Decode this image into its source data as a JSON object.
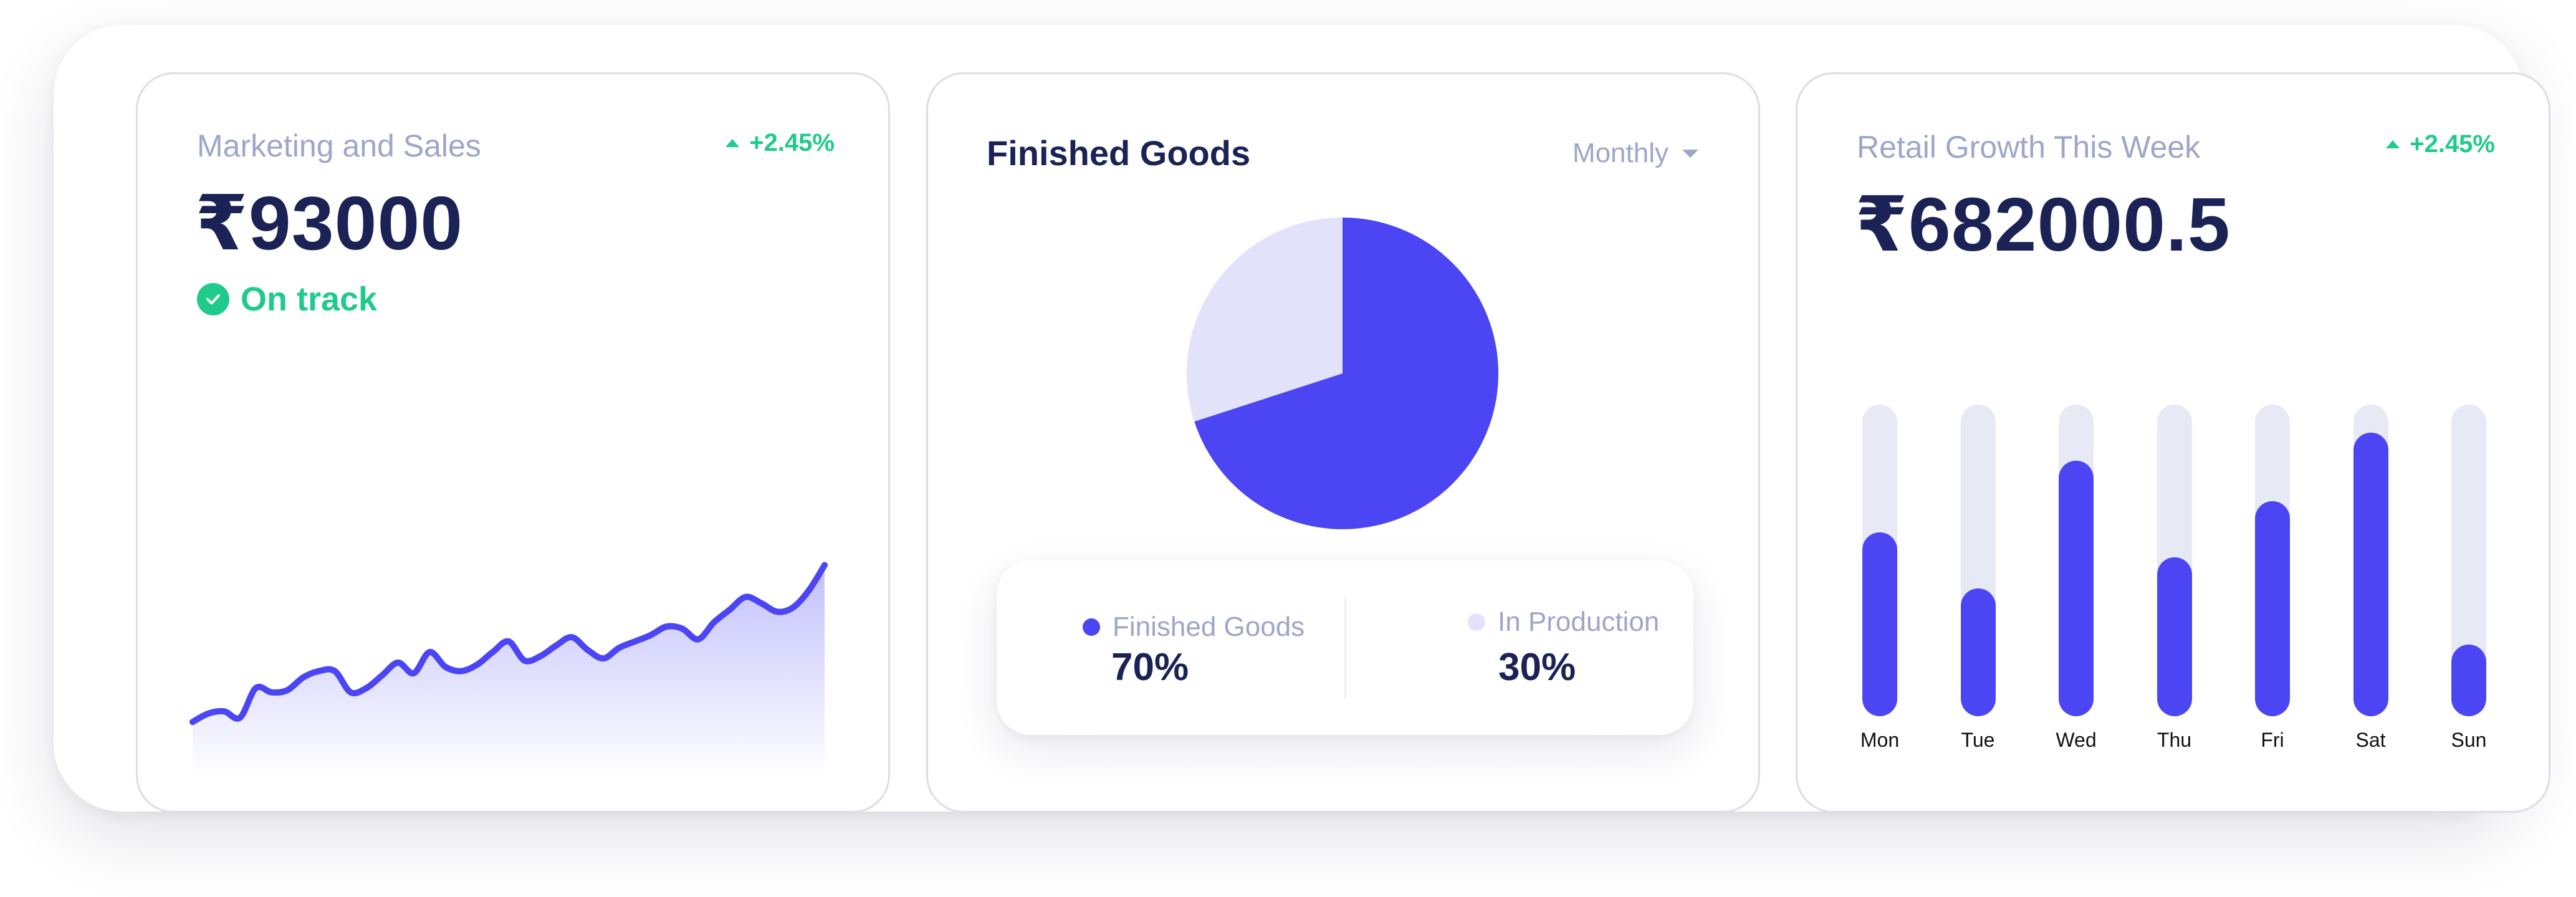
{
  "marketing": {
    "title": "Marketing and Sales",
    "trend": "+2.45%",
    "value": "₹93000",
    "status": "On track",
    "status_icon": "check-circle-icon",
    "trend_icon": "triangle-up-icon"
  },
  "finished_goods": {
    "title": "Finished Goods",
    "period": "Monthly",
    "legend": [
      {
        "label": "Finished Goods",
        "value": "70%",
        "color": "#4b45f4"
      },
      {
        "label": "In Production",
        "value": "30%",
        "color": "#e3e2fb"
      }
    ]
  },
  "retail": {
    "title": "Retail Growth This Week",
    "trend": "+2.45%",
    "value": "₹682000.5",
    "trend_icon": "triangle-up-icon"
  },
  "colors": {
    "accent": "#4b45f4",
    "accent_light": "#e3e2fb",
    "positive": "#1fcb8b",
    "text_dark": "#1b2255",
    "text_muted": "#9ea6c9",
    "bar_track": "#e7e9f5"
  },
  "chart_data": [
    {
      "type": "area",
      "title": "",
      "xlabel": "",
      "ylabel": "",
      "grid": false,
      "legend": "none",
      "ylim": [
        0,
        100
      ],
      "x": [
        0,
        1,
        2,
        3,
        4,
        5,
        6,
        7,
        8,
        9,
        10,
        11,
        12,
        13,
        14,
        15,
        16,
        17,
        18,
        19,
        20,
        21,
        22,
        23,
        24,
        25,
        26,
        27,
        28,
        29,
        30,
        31,
        32,
        33,
        34,
        35,
        36,
        37,
        38,
        39,
        40
      ],
      "values": [
        12,
        16,
        17,
        14,
        28,
        26,
        27,
        33,
        36,
        36,
        26,
        28,
        34,
        40,
        35,
        45,
        38,
        36,
        39,
        45,
        50,
        41,
        43,
        48,
        52,
        46,
        42,
        47,
        50,
        53,
        57,
        56,
        51,
        59,
        65,
        71,
        68,
        64,
        66,
        74,
        86
      ]
    },
    {
      "type": "pie",
      "title": "",
      "legend": "bottom",
      "categories": [
        "Finished Goods",
        "In Production"
      ],
      "values": [
        70,
        30
      ],
      "colors": [
        "#4b45f4",
        "#e3e2fb"
      ]
    },
    {
      "type": "bar",
      "title": "",
      "xlabel": "",
      "ylabel": "",
      "grid": false,
      "legend": "none",
      "ylim": [
        0,
        100
      ],
      "categories": [
        "Mon",
        "Tue",
        "Wed",
        "Thu",
        "Fri",
        "Sat",
        "Sun"
      ],
      "values": [
        59,
        41,
        82,
        51,
        69,
        91,
        23
      ]
    }
  ]
}
